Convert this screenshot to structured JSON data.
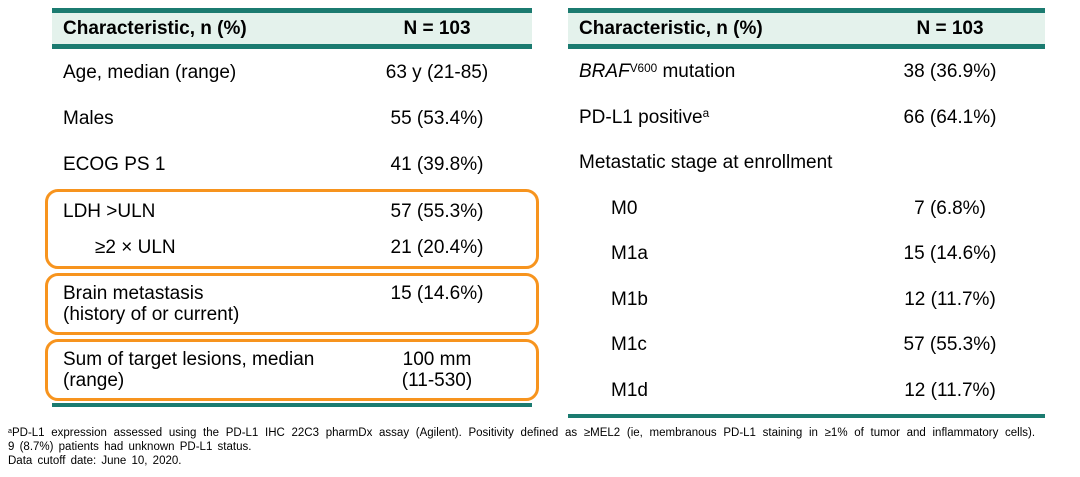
{
  "colors": {
    "teal_border": "#1B7B70",
    "header_background": "#E4F2EC",
    "highlight_orange": "#F7941E",
    "text": "#000000",
    "page_background": "#FFFFFF"
  },
  "tables": [
    {
      "name": "baseline-characteristics-left",
      "header": {
        "label": "Characteristic, n (%)",
        "value": "N = 103"
      },
      "sections": [
        {
          "boxed": false,
          "rows": [
            {
              "label": [
                "Age, median (range)"
              ],
              "value": [
                "63 y (21-85)"
              ]
            },
            {
              "label": [
                "Males"
              ],
              "value": [
                "55 (53.4%)"
              ]
            },
            {
              "label": [
                "ECOG PS 1"
              ],
              "value": [
                "41 (39.8%)"
              ]
            }
          ]
        },
        {
          "boxed": true,
          "rows": [
            {
              "label": [
                "LDH >ULN"
              ],
              "value": [
                "57 (55.3%)"
              ]
            },
            {
              "label": [
                "≥2 × ULN"
              ],
              "value": [
                "21 (20.4%)"
              ],
              "indent": true
            }
          ]
        },
        {
          "boxed": true,
          "rows": [
            {
              "label": [
                "Brain metastasis",
                "(history of or current)"
              ],
              "value": [
                "15 (14.6%)"
              ]
            }
          ]
        },
        {
          "boxed": true,
          "rows": [
            {
              "label": [
                "Sum of target lesions, median",
                "(range)"
              ],
              "value": [
                "100 mm",
                "(11-530)"
              ]
            }
          ]
        }
      ]
    },
    {
      "name": "baseline-characteristics-right",
      "header": {
        "label": "Characteristic, n (%)",
        "value": "N = 103"
      },
      "sections": [
        {
          "boxed": false,
          "rows": [
            {
              "label_rich": [
                {
                  "t": "BRAF",
                  "s": "i"
                },
                {
                  "t": "V600",
                  "s": "sup"
                },
                {
                  "t": " mutation"
                }
              ],
              "value": [
                "38 (36.9%)"
              ]
            },
            {
              "label_rich": [
                {
                  "t": "PD-L1 positive"
                },
                {
                  "t": "a",
                  "s": "sup"
                }
              ],
              "value": [
                "66 (64.1%)"
              ]
            },
            {
              "label": [
                "Metastatic stage at enrollment"
              ],
              "value": []
            },
            {
              "label": [
                "M0"
              ],
              "value": [
                "7 (6.8%)"
              ],
              "indent": true
            },
            {
              "label": [
                "M1a"
              ],
              "value": [
                "15 (14.6%)"
              ],
              "indent": true
            },
            {
              "label": [
                "M1b"
              ],
              "value": [
                "12 (11.7%)"
              ],
              "indent": true
            },
            {
              "label": [
                "M1c"
              ],
              "value": [
                "57 (55.3%)"
              ],
              "indent": true
            },
            {
              "label": [
                "M1d"
              ],
              "value": [
                "12 (11.7%)"
              ],
              "indent": true
            }
          ]
        }
      ]
    }
  ],
  "footnotes": [
    {
      "rich": [
        {
          "t": "a",
          "s": "sup"
        },
        {
          "t": "PD-L1 expression assessed using the PD-L1 IHC 22C3 pharmDx assay (Agilent). Positivity defined as ≥MEL2 (ie, membranous PD-L1 staining in ≥1% of tumor and inflammatory cells)."
        }
      ]
    },
    {
      "rich": [
        {
          "t": "9 (8.7%) patients had unknown PD-L1 status."
        }
      ]
    },
    {
      "rich": [
        {
          "t": "Data cutoff date: June 10, 2020."
        }
      ]
    }
  ]
}
